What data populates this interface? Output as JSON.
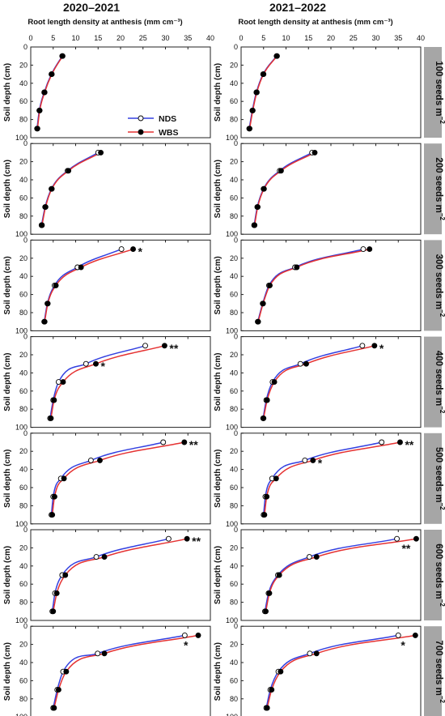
{
  "chart_data": {
    "type": "line",
    "column_titles": [
      "2020–2021",
      "2021–2022"
    ],
    "xlabel": "Root length density at anthesis (mm cm⁻³)",
    "ylabel": "Soil depth (cm)",
    "xlim": [
      0,
      40
    ],
    "ylim": [
      0,
      100
    ],
    "y_inverted": true,
    "x_ticks": [
      0,
      5,
      10,
      15,
      20,
      25,
      30,
      35,
      40
    ],
    "y_ticks": [
      0,
      20,
      40,
      60,
      80,
      100
    ],
    "depths": [
      10,
      30,
      50,
      70,
      90
    ],
    "legend": {
      "placement": "inside-first-panel",
      "entries": [
        "NDS",
        "WBS"
      ]
    },
    "series_colors": {
      "NDS": "#3340e0",
      "WBS": "#e53232"
    },
    "series_markers": {
      "NDS": "open-circle",
      "WBS": "filled-circle"
    },
    "densities": [
      "100 seeds m",
      "200 seeds m",
      "300 seeds m",
      "400 seeds m",
      "500 seeds m",
      "600 seeds m",
      "700 seeds m"
    ],
    "density_superscript": "−2",
    "panels": [
      {
        "year": "2020–2021",
        "density": "100 seeds m",
        "NDS": [
          7.0,
          4.6,
          3.0,
          1.9,
          1.4
        ],
        "WBS": [
          7.1,
          4.7,
          3.1,
          2.0,
          1.5
        ],
        "sig": []
      },
      {
        "year": "2021–2022",
        "density": "100 seeds m",
        "NDS": [
          7.9,
          4.9,
          3.4,
          2.5,
          1.8
        ],
        "WBS": [
          8.0,
          5.0,
          3.5,
          2.6,
          1.9
        ],
        "sig": []
      },
      {
        "year": "2020–2021",
        "density": "200 seeds m",
        "NDS": [
          15.0,
          8.2,
          4.6,
          3.2,
          2.4
        ],
        "WBS": [
          15.6,
          8.4,
          4.7,
          3.3,
          2.5
        ],
        "sig": []
      },
      {
        "year": "2021–2022",
        "density": "200 seeds m",
        "NDS": [
          15.8,
          8.6,
          5.0,
          3.6,
          2.9
        ],
        "WBS": [
          16.4,
          8.9,
          5.1,
          3.7,
          3.0
        ],
        "sig": []
      },
      {
        "year": "2020–2021",
        "density": "300 seeds m",
        "NDS": [
          20.2,
          10.4,
          5.3,
          3.7,
          3.0
        ],
        "WBS": [
          22.8,
          11.2,
          5.6,
          3.8,
          3.1
        ],
        "sig": [
          {
            "depth": 10,
            "label": "*"
          }
        ]
      },
      {
        "year": "2021–2022",
        "density": "300 seeds m",
        "NDS": [
          27.2,
          12.0,
          6.2,
          4.8,
          3.7
        ],
        "WBS": [
          28.6,
          12.4,
          6.4,
          4.9,
          3.8
        ],
        "sig": []
      },
      {
        "year": "2020–2021",
        "density": "400 seeds m",
        "NDS": [
          25.5,
          12.3,
          6.2,
          5.0,
          4.3
        ],
        "WBS": [
          29.8,
          14.5,
          7.2,
          5.2,
          4.5
        ],
        "sig": [
          {
            "depth": 10,
            "label": "**"
          },
          {
            "depth": 30,
            "label": "*"
          }
        ]
      },
      {
        "year": "2021–2022",
        "density": "400 seeds m",
        "NDS": [
          27.0,
          13.2,
          7.0,
          5.6,
          4.9
        ],
        "WBS": [
          29.7,
          14.5,
          7.4,
          5.8,
          5.0
        ],
        "sig": [
          {
            "depth": 10,
            "label": "*"
          }
        ]
      },
      {
        "year": "2020–2021",
        "density": "500 seeds m",
        "NDS": [
          29.5,
          13.4,
          6.7,
          5.0,
          4.6
        ],
        "WBS": [
          34.2,
          15.4,
          7.4,
          5.3,
          4.8
        ],
        "sig": [
          {
            "depth": 10,
            "label": "**"
          }
        ]
      },
      {
        "year": "2021–2022",
        "density": "500 seeds m",
        "NDS": [
          31.3,
          14.2,
          6.9,
          5.4,
          5.0
        ],
        "WBS": [
          35.4,
          16.0,
          7.8,
          5.7,
          5.2
        ],
        "sig": [
          {
            "depth": 10,
            "label": "**"
          },
          {
            "depth": 30,
            "label": "*"
          }
        ]
      },
      {
        "year": "2020–2021",
        "density": "600 seeds m",
        "NDS": [
          30.7,
          14.6,
          7.0,
          5.4,
          4.8
        ],
        "WBS": [
          34.8,
          16.4,
          7.7,
          5.8,
          5.0
        ],
        "sig": [
          {
            "depth": 10,
            "label": "**"
          }
        ]
      },
      {
        "year": "2021–2022",
        "density": "600 seeds m",
        "NDS": [
          34.7,
          15.2,
          8.2,
          6.1,
          5.3
        ],
        "WBS": [
          39.0,
          16.8,
          8.5,
          6.3,
          5.5
        ],
        "sig": [
          {
            "depth": 10,
            "label": "**"
          }
        ]
      },
      {
        "year": "2020–2021",
        "density": "700 seeds m",
        "NDS": [
          34.3,
          14.9,
          7.2,
          5.9,
          5.0
        ],
        "WBS": [
          37.3,
          16.4,
          7.9,
          6.2,
          5.2
        ],
        "sig": [
          {
            "depth": 10,
            "label": "*"
          }
        ]
      },
      {
        "year": "2021–2022",
        "density": "700 seeds m",
        "NDS": [
          35.0,
          15.3,
          8.3,
          6.5,
          5.6
        ],
        "WBS": [
          38.8,
          16.8,
          8.8,
          6.8,
          5.8
        ],
        "sig": [
          {
            "depth": 10,
            "label": "*"
          }
        ]
      }
    ]
  }
}
